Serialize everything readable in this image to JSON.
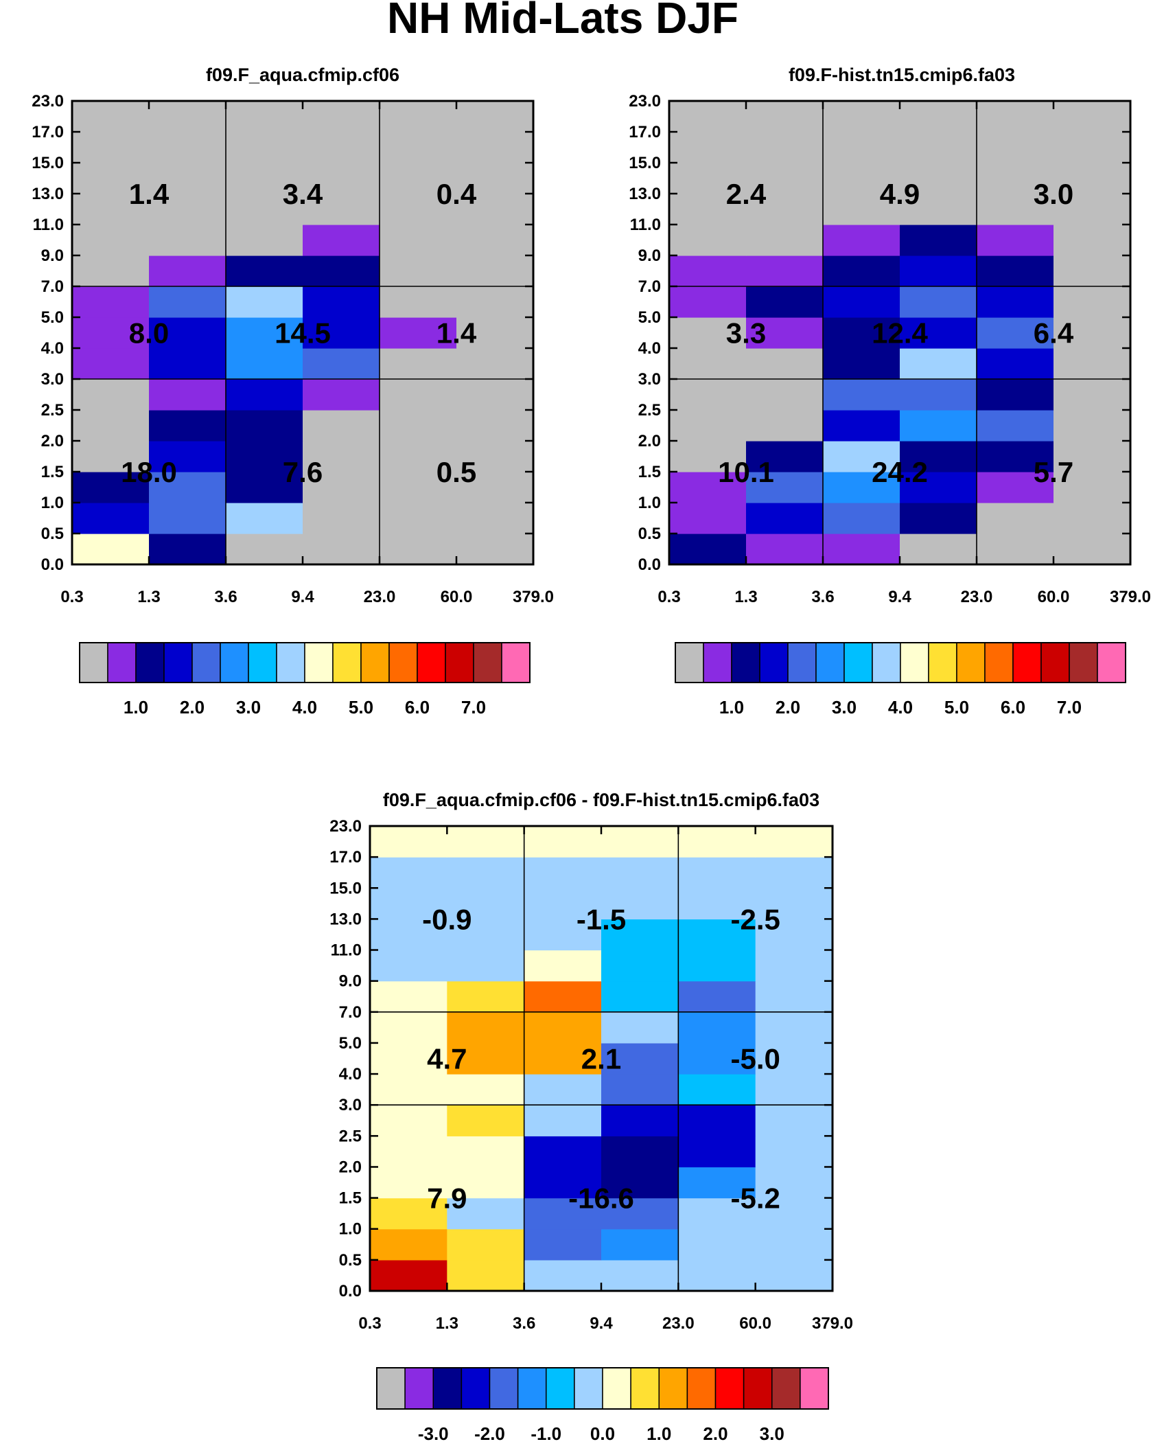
{
  "title": "NH Mid-Lats DJF",
  "colormap": {
    "colors": [
      "#bebebe",
      "#8a2be2",
      "#00008b",
      "#0000cd",
      "#4169e1",
      "#1e90ff",
      "#00bfff",
      "#a0d2ff",
      "#ffffd0",
      "#ffe033",
      "#ffa500",
      "#ff6a00",
      "#ff0000",
      "#cc0000",
      "#a52a2a",
      "#ff69b4"
    ]
  },
  "chart_data": [
    {
      "type": "heatmap",
      "title": "f09.F_aqua.cfmip.cf06",
      "x_ticks": [
        "0.3",
        "1.3",
        "3.6",
        "9.4",
        "23.0",
        "60.0",
        "379.0"
      ],
      "y_ticks": [
        "0.0",
        "0.5",
        "1.0",
        "1.5",
        "2.0",
        "2.5",
        "3.0",
        "4.0",
        "5.0",
        "7.0",
        "9.0",
        "11.0",
        "13.0",
        "15.0",
        "17.0",
        "23.0"
      ],
      "grid_color_index": [
        [
          8,
          2,
          0,
          0,
          0,
          0
        ],
        [
          3,
          4,
          7,
          0,
          0,
          0
        ],
        [
          2,
          4,
          2,
          0,
          0,
          0
        ],
        [
          0,
          3,
          2,
          0,
          0,
          0
        ],
        [
          0,
          2,
          2,
          0,
          0,
          0
        ],
        [
          0,
          1,
          3,
          1,
          0,
          0
        ],
        [
          1,
          3,
          5,
          4,
          0,
          0
        ],
        [
          1,
          3,
          5,
          3,
          1,
          0
        ],
        [
          1,
          4,
          7,
          3,
          0,
          0
        ],
        [
          0,
          1,
          2,
          2,
          0,
          0
        ],
        [
          0,
          0,
          0,
          1,
          0,
          0
        ],
        [
          0,
          0,
          0,
          0,
          0,
          0
        ],
        [
          0,
          0,
          0,
          0,
          0,
          0
        ],
        [
          0,
          0,
          0,
          0,
          0,
          0
        ],
        [
          0,
          0,
          0,
          0,
          0,
          0
        ]
      ],
      "region_labels": [
        [
          "18.0",
          "7.6",
          "0.5"
        ],
        [
          "8.0",
          "14.5",
          "1.4"
        ],
        [
          "1.4",
          "3.4",
          "0.4"
        ]
      ],
      "colorbar": {
        "labels": [
          "1.0",
          "2.0",
          "3.0",
          "4.0",
          "5.0",
          "6.0",
          "7.0"
        ]
      }
    },
    {
      "type": "heatmap",
      "title": "f09.F-hist.tn15.cmip6.fa03",
      "x_ticks": [
        "0.3",
        "1.3",
        "3.6",
        "9.4",
        "23.0",
        "60.0",
        "379.0"
      ],
      "y_ticks": [
        "0.0",
        "0.5",
        "1.0",
        "1.5",
        "2.0",
        "2.5",
        "3.0",
        "4.0",
        "5.0",
        "7.0",
        "9.0",
        "11.0",
        "13.0",
        "15.0",
        "17.0",
        "23.0"
      ],
      "grid_color_index": [
        [
          2,
          1,
          1,
          0,
          0,
          0
        ],
        [
          1,
          3,
          4,
          2,
          0,
          0
        ],
        [
          1,
          4,
          5,
          3,
          1,
          0
        ],
        [
          0,
          2,
          7,
          2,
          2,
          0
        ],
        [
          0,
          0,
          3,
          5,
          4,
          0
        ],
        [
          0,
          0,
          4,
          4,
          2,
          0
        ],
        [
          0,
          0,
          2,
          7,
          3,
          0
        ],
        [
          0,
          1,
          2,
          3,
          4,
          0
        ],
        [
          1,
          2,
          3,
          4,
          3,
          0
        ],
        [
          1,
          1,
          2,
          3,
          2,
          0
        ],
        [
          0,
          0,
          1,
          2,
          1,
          0
        ],
        [
          0,
          0,
          0,
          0,
          0,
          0
        ],
        [
          0,
          0,
          0,
          0,
          0,
          0
        ],
        [
          0,
          0,
          0,
          0,
          0,
          0
        ],
        [
          0,
          0,
          0,
          0,
          0,
          0
        ]
      ],
      "region_labels": [
        [
          "10.1",
          "24.2",
          "5.7"
        ],
        [
          "3.3",
          "12.4",
          "6.4"
        ],
        [
          "2.4",
          "4.9",
          "3.0"
        ]
      ],
      "colorbar": {
        "labels": [
          "1.0",
          "2.0",
          "3.0",
          "4.0",
          "5.0",
          "6.0",
          "7.0"
        ]
      }
    },
    {
      "type": "heatmap",
      "title": "f09.F_aqua.cfmip.cf06 - f09.F-hist.tn15.cmip6.fa03",
      "x_ticks": [
        "0.3",
        "1.3",
        "3.6",
        "9.4",
        "23.0",
        "60.0",
        "379.0"
      ],
      "y_ticks": [
        "0.0",
        "0.5",
        "1.0",
        "1.5",
        "2.0",
        "2.5",
        "3.0",
        "4.0",
        "5.0",
        "7.0",
        "9.0",
        "11.0",
        "13.0",
        "15.0",
        "17.0",
        "23.0"
      ],
      "grid_color_index": [
        [
          13,
          9,
          7,
          7,
          7,
          7
        ],
        [
          10,
          9,
          4,
          5,
          7,
          7
        ],
        [
          9,
          7,
          4,
          4,
          7,
          7
        ],
        [
          8,
          8,
          3,
          2,
          5,
          7
        ],
        [
          8,
          8,
          3,
          2,
          3,
          7
        ],
        [
          8,
          9,
          7,
          3,
          3,
          7
        ],
        [
          8,
          8,
          7,
          4,
          6,
          7
        ],
        [
          8,
          10,
          10,
          4,
          5,
          7
        ],
        [
          8,
          10,
          10,
          7,
          5,
          7
        ],
        [
          8,
          9,
          11,
          6,
          4,
          7
        ],
        [
          7,
          7,
          8,
          6,
          6,
          7
        ],
        [
          7,
          7,
          7,
          6,
          6,
          7
        ],
        [
          7,
          7,
          7,
          7,
          7,
          7
        ],
        [
          7,
          7,
          7,
          7,
          7,
          7
        ],
        [
          8,
          8,
          8,
          8,
          8,
          8
        ]
      ],
      "region_labels": [
        [
          "7.9",
          "-16.6",
          "-5.2"
        ],
        [
          "4.7",
          "2.1",
          "-5.0"
        ],
        [
          "-0.9",
          "-1.5",
          "-2.5"
        ]
      ],
      "colorbar": {
        "labels": [
          "-3.0",
          "-2.0",
          "-1.0",
          "0.0",
          "1.0",
          "2.0",
          "3.0"
        ]
      }
    }
  ]
}
